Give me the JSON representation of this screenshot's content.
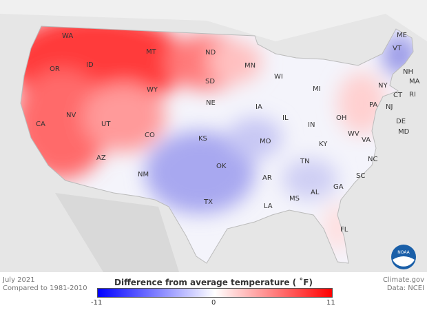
{
  "caption": {
    "period": "July 2021",
    "baseline": "Compared to 1981-2010"
  },
  "credit": {
    "source": "Climate.gov",
    "data": "Data: NCEI"
  },
  "legend": {
    "title": "Difference from average temperature ( ˚F)",
    "min_label": "-11",
    "mid_label": "0",
    "max_label": "11",
    "colors": {
      "min": "#0000ff",
      "mid": "#ffffff",
      "max": "#ff0000"
    }
  },
  "logo": {
    "text": "NOAA"
  },
  "states": [
    {
      "abbr": "WA"
    },
    {
      "abbr": "OR"
    },
    {
      "abbr": "ID"
    },
    {
      "abbr": "MT"
    },
    {
      "abbr": "ND"
    },
    {
      "abbr": "MN"
    },
    {
      "abbr": "WY"
    },
    {
      "abbr": "SD"
    },
    {
      "abbr": "WI"
    },
    {
      "abbr": "MI"
    },
    {
      "abbr": "NV"
    },
    {
      "abbr": "CA"
    },
    {
      "abbr": "UT"
    },
    {
      "abbr": "NE"
    },
    {
      "abbr": "IA"
    },
    {
      "abbr": "CO"
    },
    {
      "abbr": "KS"
    },
    {
      "abbr": "MO"
    },
    {
      "abbr": "IL"
    },
    {
      "abbr": "IN"
    },
    {
      "abbr": "OH"
    },
    {
      "abbr": "AZ"
    },
    {
      "abbr": "NM"
    },
    {
      "abbr": "OK"
    },
    {
      "abbr": "AR"
    },
    {
      "abbr": "TX"
    },
    {
      "abbr": "LA"
    },
    {
      "abbr": "MS"
    },
    {
      "abbr": "AL"
    },
    {
      "abbr": "GA"
    },
    {
      "abbr": "FL"
    },
    {
      "abbr": "TN"
    },
    {
      "abbr": "KY"
    },
    {
      "abbr": "WV"
    },
    {
      "abbr": "VA"
    },
    {
      "abbr": "NC"
    },
    {
      "abbr": "SC"
    },
    {
      "abbr": "PA"
    },
    {
      "abbr": "NY"
    },
    {
      "abbr": "VT"
    },
    {
      "abbr": "ME"
    },
    {
      "abbr": "NH"
    },
    {
      "abbr": "MA"
    },
    {
      "abbr": "CT"
    },
    {
      "abbr": "RI"
    },
    {
      "abbr": "NJ"
    },
    {
      "abbr": "DE"
    },
    {
      "abbr": "MD"
    }
  ]
}
